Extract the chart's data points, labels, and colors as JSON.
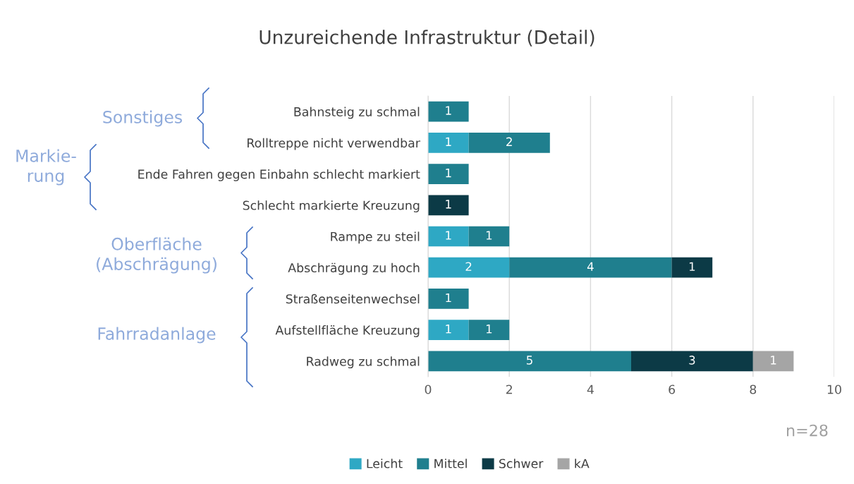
{
  "chart_data": {
    "type": "bar",
    "orientation": "horizontal",
    "stacked": true,
    "title": "Unzureichende Infrastruktur (Detail)",
    "categories": [
      "Bahnsteig zu schmal",
      "Rolltreppe nicht verwendbar",
      "Ende Fahren gegen Einbahn schlecht markiert",
      "Schlecht markierte Kreuzung",
      "Rampe zu steil",
      "Abschrägung zu hoch",
      "Straßenseitenwechsel",
      "Aufstellfläche Kreuzung",
      "Radweg zu schmal"
    ],
    "series": [
      {
        "name": "Leicht",
        "color": "#2ea8c4",
        "values": [
          null,
          1,
          null,
          null,
          1,
          2,
          null,
          1,
          null
        ]
      },
      {
        "name": "Mittel",
        "color": "#1f7f8e",
        "values": [
          1,
          2,
          1,
          null,
          1,
          4,
          1,
          1,
          5
        ]
      },
      {
        "name": "Schwer",
        "color": "#0c3a46",
        "values": [
          null,
          null,
          null,
          1,
          null,
          1,
          null,
          null,
          3
        ]
      },
      {
        "name": "kA",
        "color": "#a5a5a5",
        "values": [
          null,
          null,
          null,
          null,
          null,
          null,
          null,
          null,
          1
        ]
      }
    ],
    "xlim": [
      0,
      10
    ],
    "xticks": [
      0,
      2,
      4,
      6,
      8,
      10
    ],
    "grid": "x",
    "legend": "bottom",
    "data_labels": true,
    "annotations": [
      "Sonstiges",
      "Markie-\nrung",
      "Oberfläche\n(Abschrägung)",
      "Fahrradanlage",
      "n=28"
    ]
  }
}
